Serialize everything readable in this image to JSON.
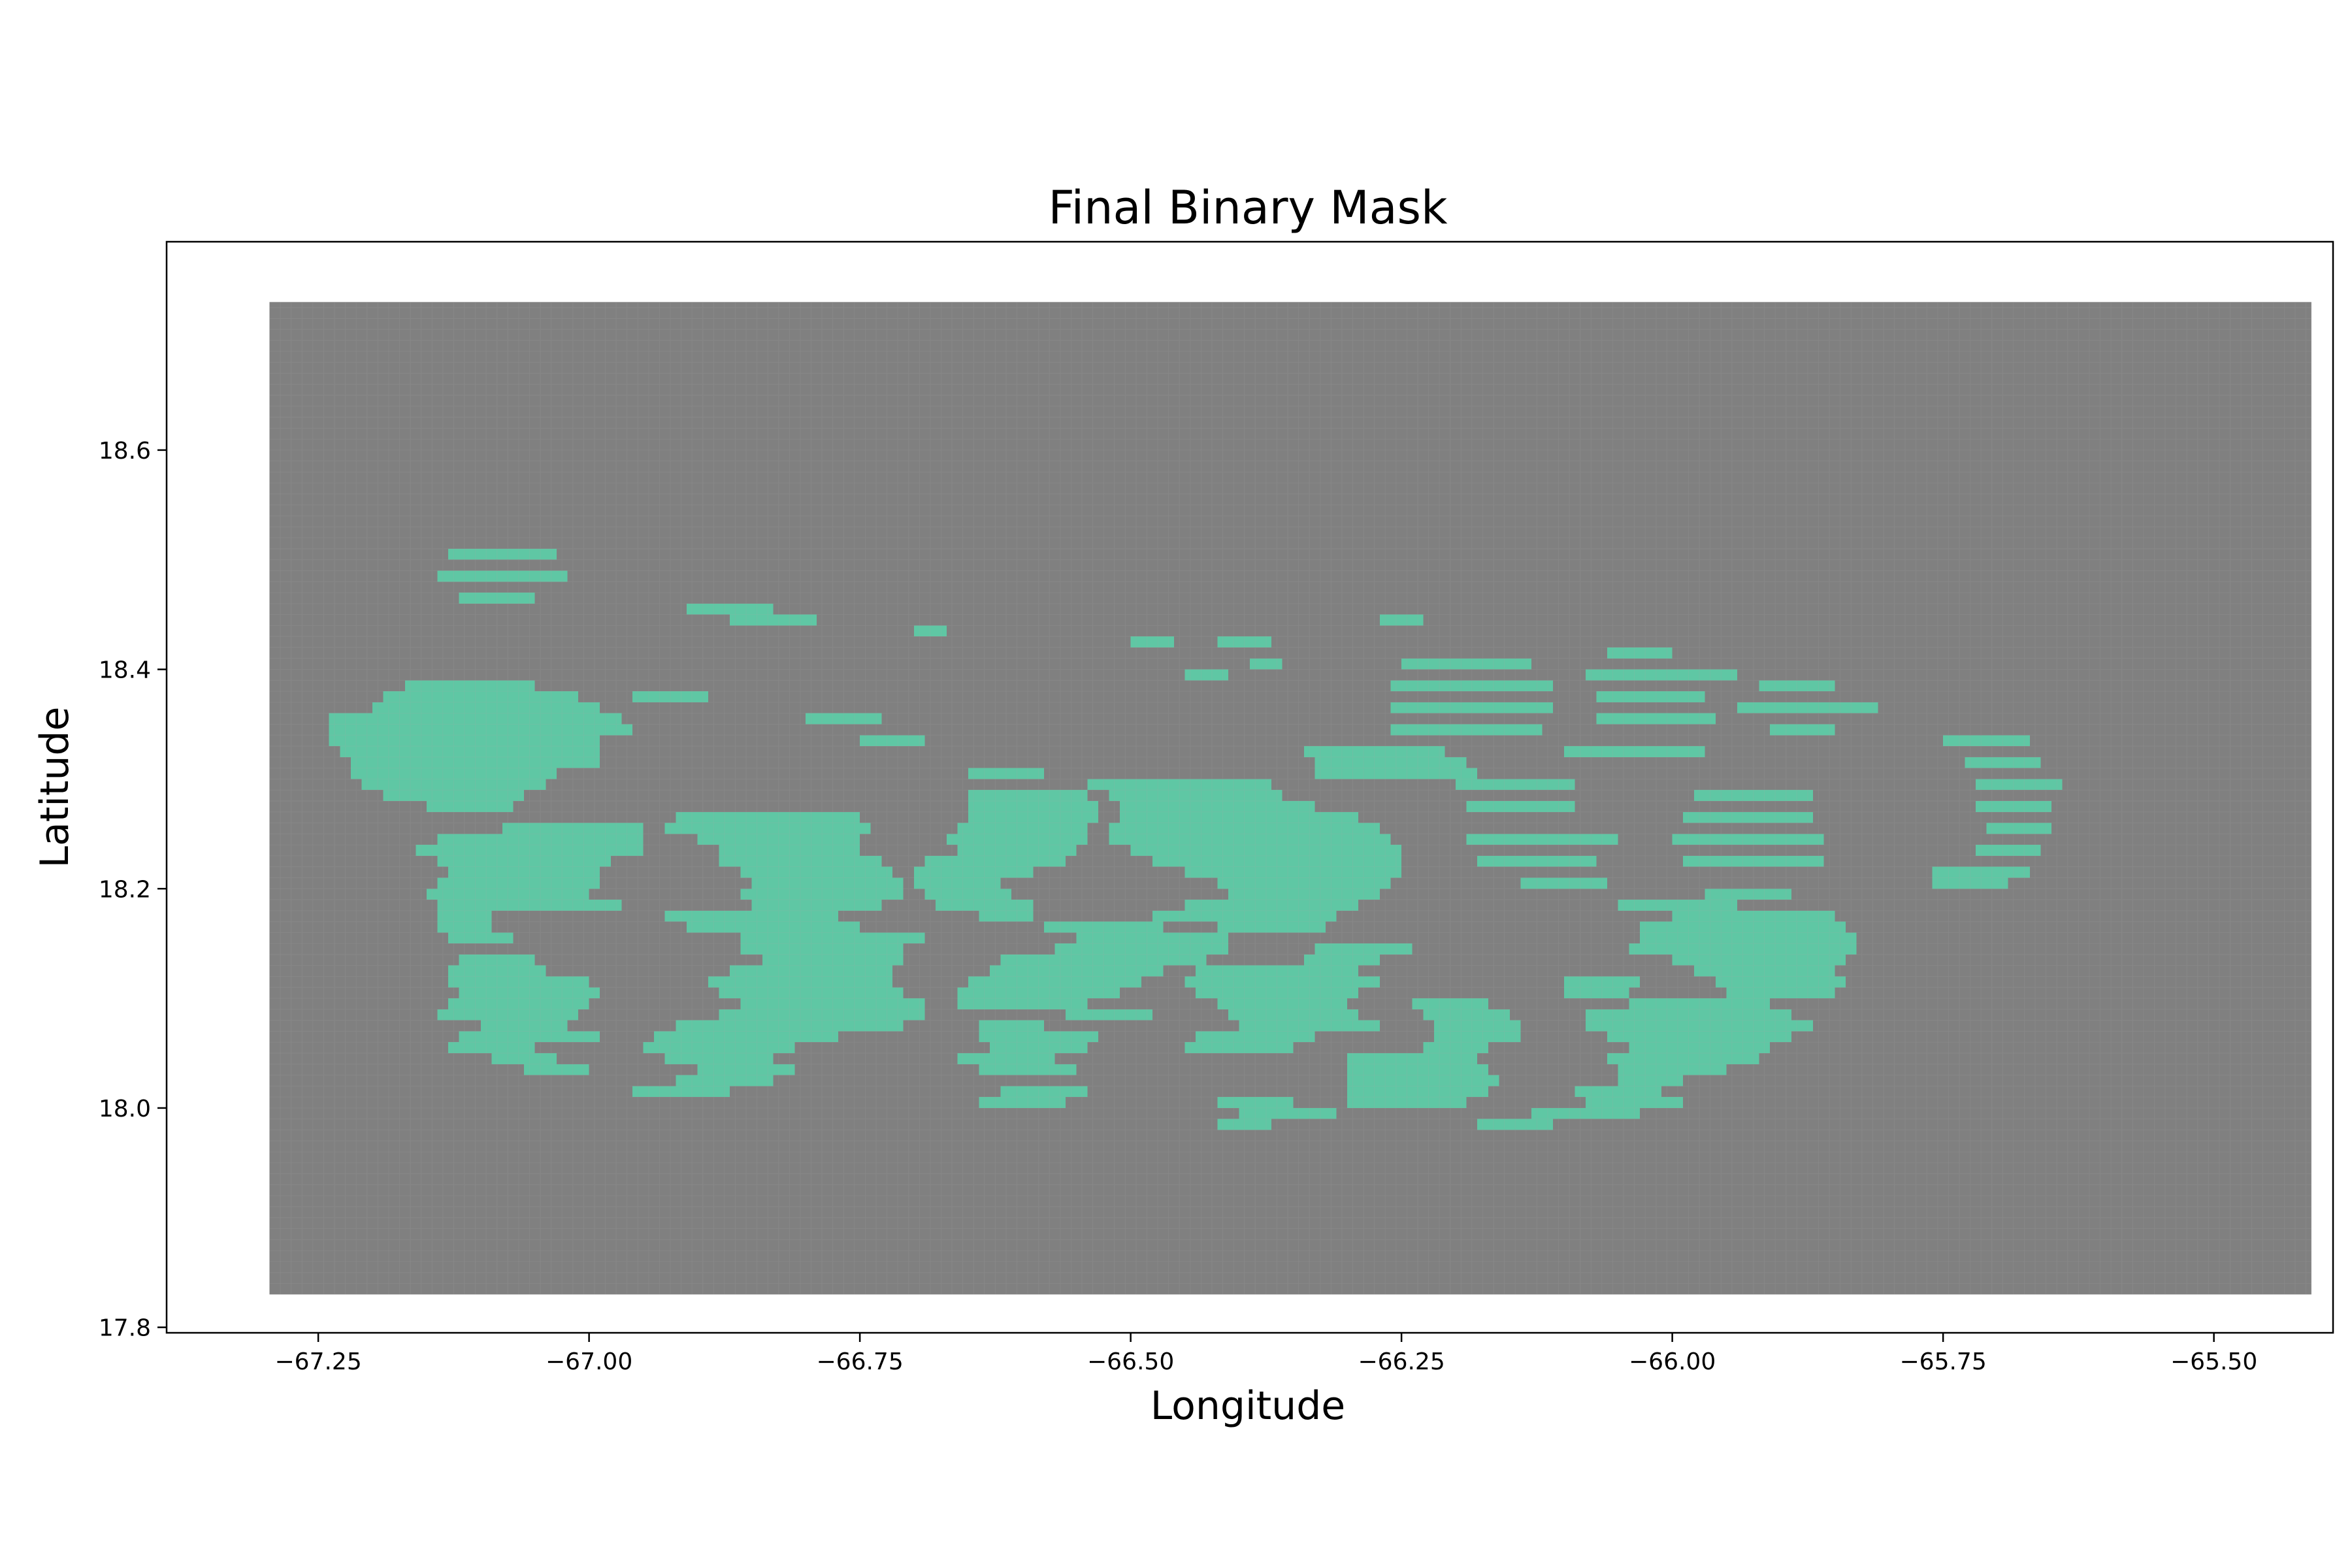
{
  "chart_data": {
    "type": "heatmap",
    "title": "Final Binary Mask",
    "xlabel": "Longitude",
    "ylabel": "Latitude",
    "xlim": [
      -67.39,
      -65.39
    ],
    "ylim": [
      17.795,
      18.79
    ],
    "x_ticks": [
      -67.25,
      -67.0,
      -66.75,
      -66.5,
      -66.25,
      -66.0,
      -65.75,
      -65.5
    ],
    "x_tick_labels": [
      "−67.25",
      "−67.00",
      "−66.75",
      "−66.50",
      "−66.25",
      "−66.00",
      "−65.75",
      "−65.50"
    ],
    "y_ticks": [
      17.8,
      18.0,
      18.2,
      18.4,
      18.6
    ],
    "y_tick_labels": [
      "17.8",
      "18.0",
      "18.2",
      "18.4",
      "18.6"
    ],
    "grid": false,
    "legend": "none",
    "domain_extent": {
      "lon": [
        -67.295,
        -65.41
      ],
      "lat": [
        17.83,
        18.735
      ]
    },
    "classes": [
      {
        "value": 0,
        "color": "#808080"
      },
      {
        "value": 1,
        "color": "#5fc7a4"
      }
    ],
    "mask_cells_value_1": {
      "cell_size_deg": 0.01,
      "lon_origin": -67.295,
      "lat_origin": 17.83,
      "runs": [
        [
          18.5,
          -67.13,
          -67.04
        ],
        [
          18.48,
          -67.14,
          -67.03
        ],
        [
          18.46,
          -67.12,
          -67.06
        ],
        [
          18.45,
          -66.91,
          -66.84
        ],
        [
          18.44,
          -66.87,
          -66.8
        ],
        [
          18.44,
          -66.27,
          -66.24
        ],
        [
          18.43,
          -66.7,
          -66.68
        ],
        [
          18.42,
          -66.5,
          -66.47
        ],
        [
          18.42,
          -66.42,
          -66.38
        ],
        [
          18.4,
          -66.39,
          -66.37
        ],
        [
          18.39,
          -66.45,
          -66.42
        ],
        [
          18.4,
          -66.25,
          -66.14
        ],
        [
          18.41,
          -66.06,
          -66.01
        ],
        [
          18.39,
          -66.08,
          -65.95
        ],
        [
          18.38,
          -67.17,
          -67.06
        ],
        [
          18.38,
          -66.26,
          -66.12
        ],
        [
          18.38,
          -65.92,
          -65.86
        ],
        [
          18.37,
          -67.19,
          -67.02
        ],
        [
          18.37,
          -66.96,
          -66.9
        ],
        [
          18.37,
          -66.07,
          -65.98
        ],
        [
          18.36,
          -67.2,
          -67.0
        ],
        [
          18.36,
          -66.26,
          -66.12
        ],
        [
          18.36,
          -65.94,
          -65.82
        ],
        [
          18.35,
          -67.24,
          -66.98
        ],
        [
          18.35,
          -66.8,
          -66.74
        ],
        [
          18.35,
          -66.07,
          -65.97
        ],
        [
          18.34,
          -67.24,
          -66.97
        ],
        [
          18.34,
          -66.26,
          -66.13
        ],
        [
          18.34,
          -65.91,
          -65.86
        ],
        [
          18.33,
          -67.24,
          -67.0
        ],
        [
          18.33,
          -66.75,
          -66.7
        ],
        [
          18.33,
          -65.75,
          -65.68
        ],
        [
          18.32,
          -67.23,
          -67.0
        ],
        [
          18.32,
          -66.34,
          -66.22
        ],
        [
          18.32,
          -66.1,
          -65.98
        ],
        [
          18.31,
          -67.22,
          -67.0
        ],
        [
          18.31,
          -66.33,
          -66.2
        ],
        [
          18.31,
          -65.73,
          -65.67
        ],
        [
          18.3,
          -67.22,
          -67.04
        ],
        [
          18.3,
          -66.65,
          -66.59
        ],
        [
          18.3,
          -66.33,
          -66.19
        ],
        [
          18.29,
          -67.21,
          -67.05
        ],
        [
          18.29,
          -66.54,
          -66.38
        ],
        [
          18.29,
          -66.2,
          -66.1
        ],
        [
          18.29,
          -65.72,
          -65.65
        ],
        [
          18.28,
          -67.19,
          -67.07
        ],
        [
          18.28,
          -66.65,
          -66.55
        ],
        [
          18.28,
          -66.52,
          -66.37
        ],
        [
          18.28,
          -65.98,
          -65.88
        ],
        [
          18.27,
          -67.15,
          -67.08
        ],
        [
          18.27,
          -66.65,
          -66.54
        ],
        [
          18.27,
          -66.51,
          -66.34
        ],
        [
          18.27,
          -66.19,
          -66.1
        ],
        [
          18.27,
          -65.72,
          -65.66
        ],
        [
          18.26,
          -66.92,
          -66.76
        ],
        [
          18.26,
          -66.65,
          -66.54
        ],
        [
          18.26,
          -66.51,
          -66.3
        ],
        [
          18.26,
          -65.99,
          -65.88
        ],
        [
          18.25,
          -67.08,
          -66.96
        ],
        [
          18.25,
          -66.93,
          -66.75
        ],
        [
          18.25,
          -66.66,
          -66.55
        ],
        [
          18.25,
          -66.52,
          -66.28
        ],
        [
          18.25,
          -65.71,
          -65.66
        ],
        [
          18.24,
          -67.14,
          -66.96
        ],
        [
          18.24,
          -66.9,
          -66.76
        ],
        [
          18.24,
          -66.67,
          -66.55
        ],
        [
          18.24,
          -66.52,
          -66.27
        ],
        [
          18.24,
          -66.19,
          -66.06
        ],
        [
          18.24,
          -66.0,
          -65.87
        ],
        [
          18.23,
          -67.16,
          -66.96
        ],
        [
          18.23,
          -66.88,
          -66.76
        ],
        [
          18.23,
          -66.66,
          -66.56
        ],
        [
          18.23,
          -66.5,
          -66.26
        ],
        [
          18.23,
          -65.72,
          -65.67
        ],
        [
          18.22,
          -67.14,
          -66.99
        ],
        [
          18.22,
          -66.88,
          -66.74
        ],
        [
          18.22,
          -66.69,
          -66.57
        ],
        [
          18.22,
          -66.48,
          -66.26
        ],
        [
          18.22,
          -66.18,
          -66.08
        ],
        [
          18.22,
          -65.99,
          -65.87
        ],
        [
          18.21,
          -67.13,
          -67.0
        ],
        [
          18.21,
          -66.86,
          -66.73
        ],
        [
          18.21,
          -66.7,
          -66.6
        ],
        [
          18.21,
          -66.45,
          -66.26
        ],
        [
          18.21,
          -65.76,
          -65.68
        ],
        [
          18.2,
          -67.14,
          -67.0
        ],
        [
          18.2,
          -66.85,
          -66.72
        ],
        [
          18.2,
          -66.7,
          -66.63
        ],
        [
          18.2,
          -66.42,
          -66.27
        ],
        [
          18.2,
          -66.14,
          -66.07
        ],
        [
          18.2,
          -65.76,
          -65.7
        ],
        [
          18.19,
          -67.15,
          -67.01
        ],
        [
          18.19,
          -66.86,
          -66.72
        ],
        [
          18.19,
          -66.69,
          -66.62
        ],
        [
          18.19,
          -66.41,
          -66.28
        ],
        [
          18.19,
          -65.97,
          -65.9
        ],
        [
          18.18,
          -67.14,
          -66.98
        ],
        [
          18.18,
          -66.85,
          -66.74
        ],
        [
          18.18,
          -66.68,
          -66.6
        ],
        [
          18.18,
          -66.45,
          -66.3
        ],
        [
          18.18,
          -66.05,
          -65.95
        ],
        [
          18.17,
          -67.14,
          -67.1
        ],
        [
          18.17,
          -66.93,
          -66.78
        ],
        [
          18.17,
          -66.64,
          -66.6
        ],
        [
          18.17,
          -66.48,
          -66.32
        ],
        [
          18.17,
          -66.0,
          -65.86
        ],
        [
          18.16,
          -67.14,
          -67.1
        ],
        [
          18.16,
          -66.91,
          -66.76
        ],
        [
          18.16,
          -66.58,
          -66.48
        ],
        [
          18.16,
          -66.42,
          -66.33
        ],
        [
          18.16,
          -66.03,
          -65.85
        ],
        [
          18.15,
          -67.13,
          -67.08
        ],
        [
          18.15,
          -66.86,
          -66.7
        ],
        [
          18.15,
          -66.55,
          -66.42
        ],
        [
          18.15,
          -66.03,
          -65.84
        ],
        [
          18.14,
          -66.86,
          -66.72
        ],
        [
          18.14,
          -66.57,
          -66.42
        ],
        [
          18.14,
          -66.33,
          -66.25
        ],
        [
          18.14,
          -66.04,
          -65.84
        ],
        [
          18.13,
          -67.12,
          -67.06
        ],
        [
          18.13,
          -66.84,
          -66.72
        ],
        [
          18.13,
          -66.62,
          -66.44
        ],
        [
          18.13,
          -66.34,
          -66.28
        ],
        [
          18.13,
          -66.0,
          -65.85
        ],
        [
          18.12,
          -67.13,
          -67.05
        ],
        [
          18.12,
          -66.87,
          -66.73
        ],
        [
          18.12,
          -66.63,
          -66.48
        ],
        [
          18.12,
          -66.44,
          -66.3
        ],
        [
          18.12,
          -65.98,
          -65.86
        ],
        [
          18.11,
          -67.13,
          -67.01
        ],
        [
          18.11,
          -66.89,
          -66.73
        ],
        [
          18.11,
          -66.65,
          -66.5
        ],
        [
          18.11,
          -66.45,
          -66.28
        ],
        [
          18.11,
          -66.1,
          -66.04
        ],
        [
          18.11,
          -65.96,
          -65.85
        ],
        [
          18.1,
          -67.12,
          -67.0
        ],
        [
          18.1,
          -66.88,
          -66.72
        ],
        [
          18.1,
          -66.66,
          -66.52
        ],
        [
          18.1,
          -66.44,
          -66.3
        ],
        [
          18.1,
          -66.1,
          -66.05
        ],
        [
          18.1,
          -65.95,
          -65.86
        ],
        [
          18.09,
          -67.13,
          -67.01
        ],
        [
          18.09,
          -66.86,
          -66.7
        ],
        [
          18.09,
          -66.66,
          -66.55
        ],
        [
          18.09,
          -66.42,
          -66.31
        ],
        [
          18.09,
          -66.24,
          -66.18
        ],
        [
          18.09,
          -66.04,
          -65.92
        ],
        [
          18.08,
          -67.14,
          -67.02
        ],
        [
          18.08,
          -66.88,
          -66.7
        ],
        [
          18.08,
          -66.56,
          -66.49
        ],
        [
          18.08,
          -66.41,
          -66.3
        ],
        [
          18.08,
          -66.23,
          -66.16
        ],
        [
          18.08,
          -66.08,
          -65.9
        ],
        [
          18.07,
          -67.1,
          -67.03
        ],
        [
          18.07,
          -66.92,
          -66.72
        ],
        [
          18.07,
          -66.64,
          -66.59
        ],
        [
          18.07,
          -66.4,
          -66.28
        ],
        [
          18.07,
          -66.22,
          -66.15
        ],
        [
          18.07,
          -66.08,
          -65.88
        ],
        [
          18.06,
          -67.12,
          -67.0
        ],
        [
          18.06,
          -66.94,
          -66.78
        ],
        [
          18.06,
          -66.64,
          -66.54
        ],
        [
          18.06,
          -66.44,
          -66.34
        ],
        [
          18.06,
          -66.22,
          -66.15
        ],
        [
          18.06,
          -66.06,
          -65.9
        ],
        [
          18.05,
          -67.13,
          -67.06
        ],
        [
          18.05,
          -66.95,
          -66.82
        ],
        [
          18.05,
          -66.63,
          -66.55
        ],
        [
          18.05,
          -66.45,
          -66.36
        ],
        [
          18.05,
          -66.23,
          -66.18
        ],
        [
          18.05,
          -66.04,
          -65.92
        ],
        [
          18.04,
          -67.09,
          -67.04
        ],
        [
          18.04,
          -66.93,
          -66.84
        ],
        [
          18.04,
          -66.66,
          -66.58
        ],
        [
          18.04,
          -66.3,
          -66.19
        ],
        [
          18.04,
          -66.06,
          -65.93
        ],
        [
          18.03,
          -67.06,
          -67.01
        ],
        [
          18.03,
          -66.9,
          -66.82
        ],
        [
          18.03,
          -66.64,
          -66.56
        ],
        [
          18.03,
          -66.3,
          -66.18
        ],
        [
          18.03,
          -66.05,
          -65.96
        ],
        [
          18.02,
          -66.92,
          -66.84
        ],
        [
          18.02,
          -66.3,
          -66.17
        ],
        [
          18.02,
          -66.05,
          -66.0
        ],
        [
          18.01,
          -66.96,
          -66.88
        ],
        [
          18.01,
          -66.62,
          -66.55
        ],
        [
          18.01,
          -66.3,
          -66.18
        ],
        [
          18.01,
          -66.09,
          -66.02
        ],
        [
          18.0,
          -66.64,
          -66.57
        ],
        [
          18.0,
          -66.42,
          -66.36
        ],
        [
          18.0,
          -66.3,
          -66.2
        ],
        [
          18.0,
          -66.08,
          -66.0
        ],
        [
          17.99,
          -66.4,
          -66.32
        ],
        [
          17.99,
          -66.13,
          -66.04
        ],
        [
          17.98,
          -66.42,
          -66.38
        ],
        [
          17.98,
          -66.18,
          -66.12
        ]
      ]
    }
  }
}
